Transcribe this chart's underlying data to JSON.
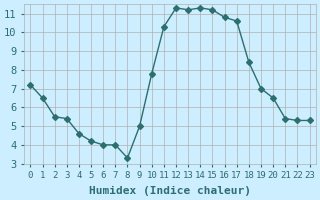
{
  "x": [
    0,
    1,
    2,
    3,
    4,
    5,
    6,
    7,
    8,
    9,
    10,
    11,
    12,
    13,
    14,
    15,
    16,
    17,
    18,
    19,
    20,
    21,
    22,
    23
  ],
  "y": [
    7.2,
    6.5,
    5.5,
    5.4,
    4.6,
    4.2,
    4.0,
    4.0,
    3.3,
    5.0,
    7.8,
    10.3,
    11.3,
    11.2,
    11.3,
    11.2,
    10.8,
    10.6,
    8.4,
    7.0,
    6.5,
    5.4,
    5.3,
    5.3
  ],
  "line_color": "#2d6e6e",
  "marker": "D",
  "marker_size": 3,
  "bg_color": "#cceeff",
  "grid_color": "#b0b0b0",
  "xlabel": "Humidex (Indice chaleur)",
  "xlim": [
    -0.5,
    23.5
  ],
  "ylim": [
    3.0,
    11.5
  ],
  "yticks": [
    3,
    4,
    5,
    6,
    7,
    8,
    9,
    10,
    11
  ],
  "xticks": [
    0,
    1,
    2,
    3,
    4,
    5,
    6,
    7,
    8,
    9,
    10,
    11,
    12,
    13,
    14,
    15,
    16,
    17,
    18,
    19,
    20,
    21,
    22,
    23
  ],
  "xtick_labels": [
    "0",
    "1",
    "2",
    "3",
    "4",
    "5",
    "6",
    "7",
    "8",
    "9",
    "10",
    "11",
    "12",
    "13",
    "14",
    "15",
    "16",
    "17",
    "18",
    "19",
    "20",
    "21",
    "22",
    "23"
  ],
  "axis_label_color": "#2d6e6e",
  "tick_color": "#2d6e6e",
  "font_size": 7,
  "xlabel_fontsize": 8
}
